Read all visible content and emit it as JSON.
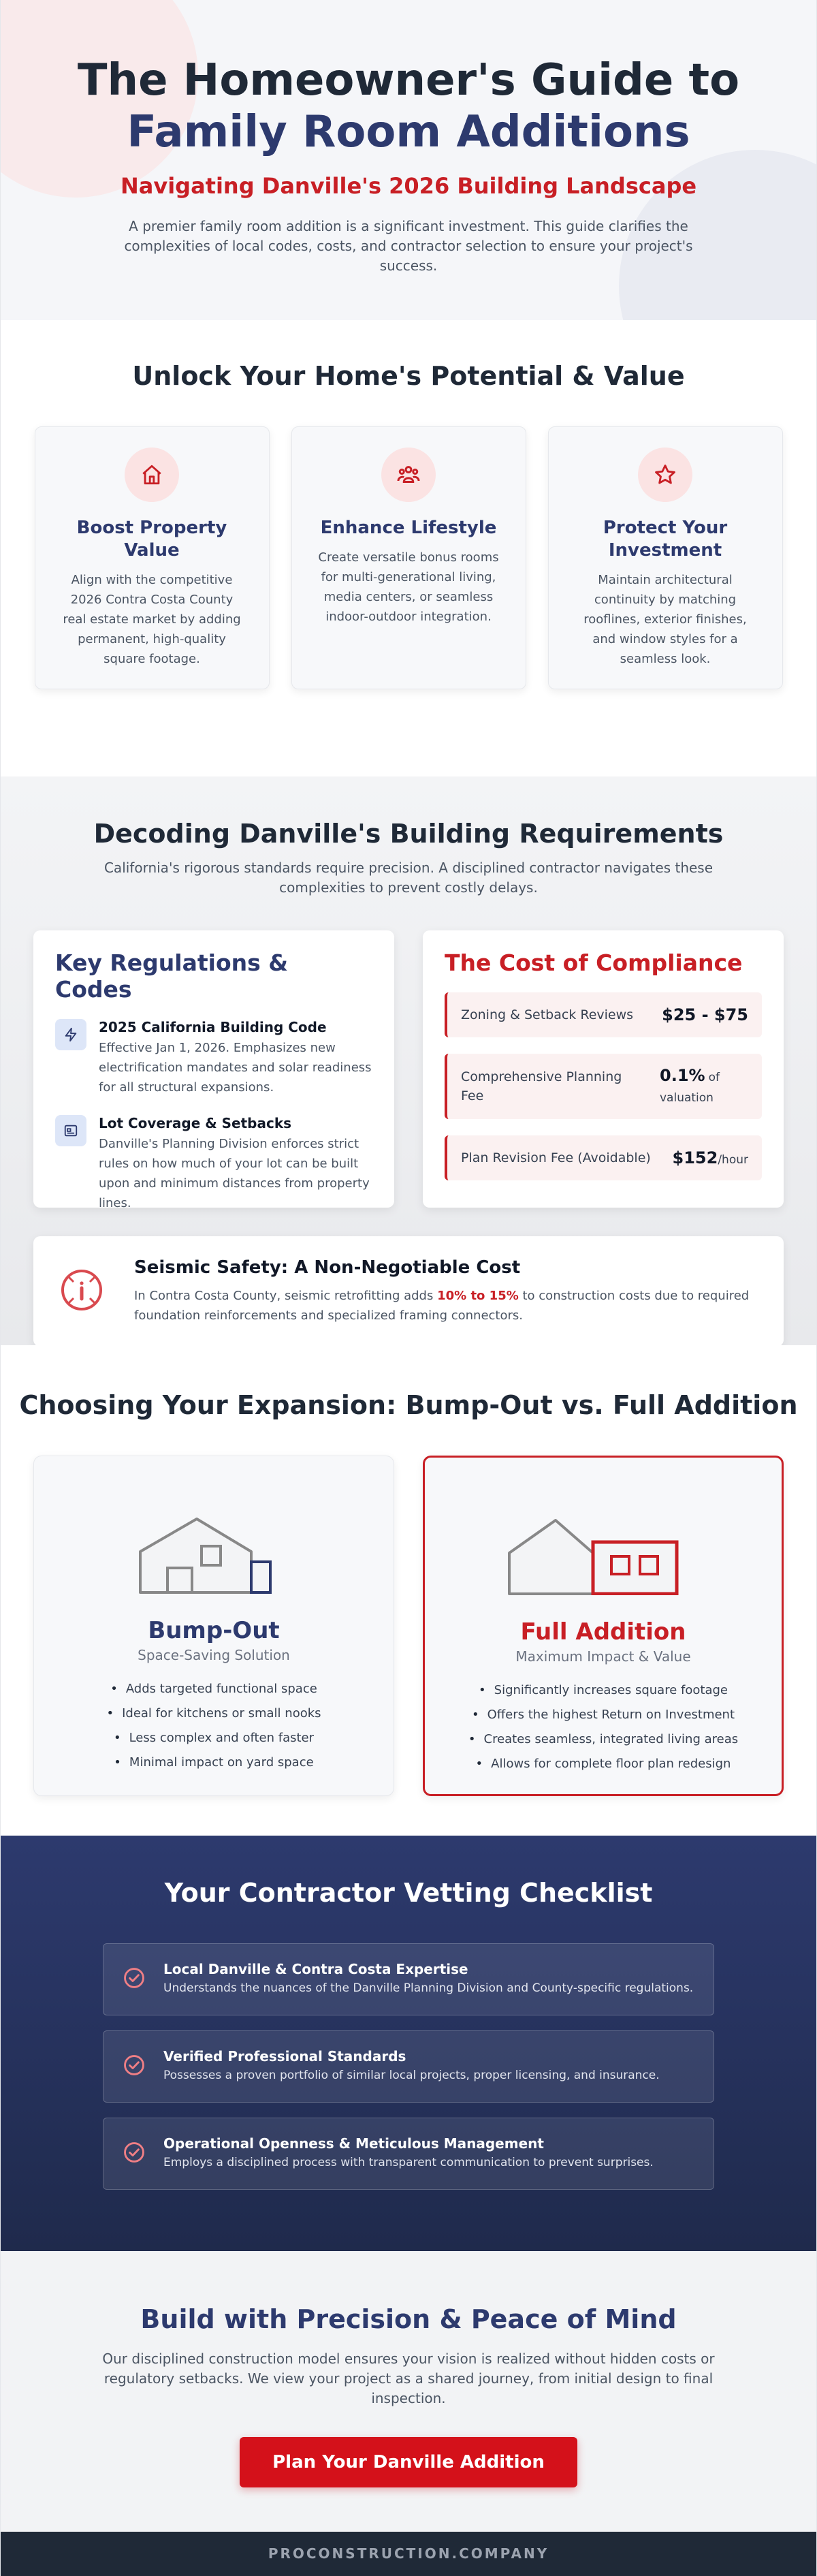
{
  "hero": {
    "title_line1": "The Homeowner's Guide to",
    "title_line2": "Family Room Additions",
    "subtitle": "Navigating Danville's 2026 Building Landscape",
    "lead": "A premier family room addition is a significant investment. This guide clarifies the complexities of local codes, costs, and contractor selection to ensure your project's success."
  },
  "benefits": {
    "title": "Unlock Your Home's Potential & Value",
    "cards": [
      {
        "icon": "home-icon",
        "title": "Boost Property Value",
        "text": "Align with the competitive 2026 Contra Costa County real estate market by adding permanent, high-quality square footage."
      },
      {
        "icon": "family-icon",
        "title": "Enhance Lifestyle",
        "text": "Create versatile bonus rooms for multi-generational living, media centers, or seamless indoor-outdoor integration."
      },
      {
        "icon": "star-icon",
        "title": "Protect Your Investment",
        "text": "Maintain architectural continuity by matching rooflines, exterior finishes, and window styles for a seamless look."
      }
    ]
  },
  "requirements": {
    "title": "Decoding Danville's Building Requirements",
    "intro": "California's rigorous standards require precision. A disciplined contractor navigates these complexities to prevent costly delays.",
    "regs_title": "Key Regulations & Codes",
    "regs": [
      {
        "icon": "bolt-icon",
        "title": "2025 California Building Code",
        "text": "Effective Jan 1, 2026. Emphasizes new electrification mandates and solar readiness for all structural expansions."
      },
      {
        "icon": "layout-icon",
        "title": "Lot Coverage & Setbacks",
        "text": "Danville's Planning Division enforces strict rules on how much of your lot can be built upon and minimum distances from property lines."
      }
    ],
    "cost_title": "The Cost of Compliance",
    "costs": [
      {
        "label": "Zoning & Setback Reviews",
        "amount": "$25 - $75",
        "unit": ""
      },
      {
        "label": "Comprehensive Planning Fee",
        "amount": "0.1%",
        "unit": "of valuation"
      },
      {
        "label": "Plan Revision Fee (Avoidable)",
        "amount": "$152",
        "unit": "/hour"
      }
    ],
    "seismic": {
      "title": "Seismic Safety: A Non-Negotiable Cost",
      "text_before": "In Contra Costa County, seismic retrofitting adds ",
      "highlight": "10% to 15%",
      "text_after": " to construction costs due to required foundation reinforcements and specialized framing connectors."
    }
  },
  "expansion": {
    "title": "Choosing Your Expansion: Bump-Out vs. Full Addition",
    "options": [
      {
        "title": "Bump-Out",
        "tagline": "Space-Saving Solution",
        "points": [
          "Adds targeted functional space",
          "Ideal for kitchens or small nooks",
          "Less complex and often faster",
          "Minimal impact on yard space"
        ]
      },
      {
        "title": "Full Addition",
        "tagline": "Maximum Impact & Value",
        "points": [
          "Significantly increases square footage",
          "Offers the highest Return on Investment",
          "Creates seamless, integrated living areas",
          "Allows for complete floor plan redesign"
        ]
      }
    ]
  },
  "checklist": {
    "title": "Your Contractor Vetting Checklist",
    "items": [
      {
        "title": "Local Danville & Contra Costa Expertise",
        "text": "Understands the nuances of the Danville Planning Division and County-specific regulations."
      },
      {
        "title": "Verified Professional Standards",
        "text": "Possesses a proven portfolio of similar local projects, proper licensing, and insurance."
      },
      {
        "title": "Operational Openness & Meticulous Management",
        "text": "Employs a disciplined process with transparent communication to prevent surprises."
      }
    ]
  },
  "cta": {
    "title": "Build with Precision & Peace of Mind",
    "text": "Our disciplined construction model ensures your vision is realized without hidden costs or regulatory setbacks. We view your project as a shared journey, from initial design to final inspection.",
    "button": "Plan Your Danville Addition"
  },
  "footer": {
    "text": "PROCONSTRUCTION.COMPANY"
  },
  "colors": {
    "brand_red": "#c81f25",
    "navy": "#2d3a6e",
    "dark": "#1f2937"
  }
}
